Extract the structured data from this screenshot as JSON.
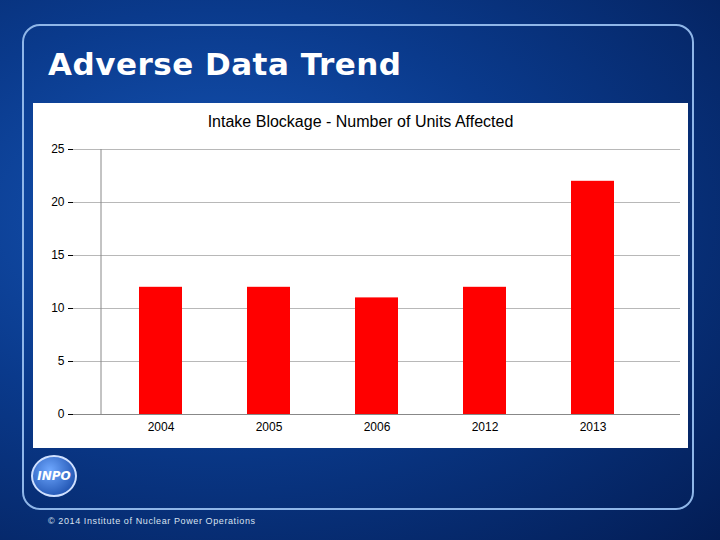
{
  "slide": {
    "heading": "Adverse Data Trend",
    "logo": "INPO",
    "footer": "© 2014 Institute of Nuclear Power Operations"
  },
  "chart_data": {
    "type": "bar",
    "title": "Intake Blockage - Number of Units Affected",
    "categories": [
      "2004",
      "2005",
      "2006",
      "2012",
      "2013"
    ],
    "values": [
      12,
      12,
      11,
      12,
      22
    ],
    "color": "#ff0000",
    "ylim": [
      0,
      25
    ],
    "yticks": [
      0,
      5,
      10,
      15,
      20,
      25
    ],
    "grid": true
  }
}
